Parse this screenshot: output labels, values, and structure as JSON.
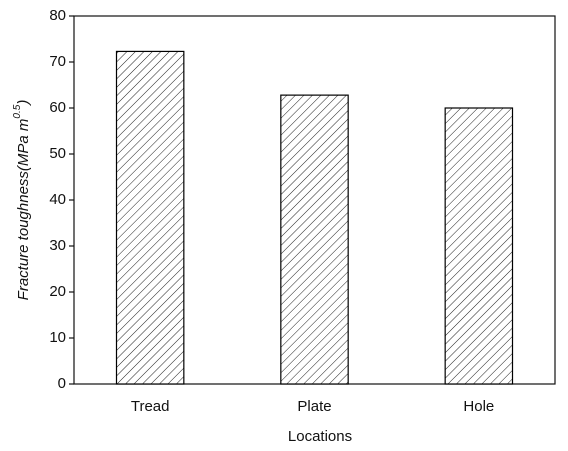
{
  "chart_data": {
    "type": "bar",
    "x_label": "Locations",
    "y_label": {
      "text": "Fracture toughness(MPa m",
      "superscript": "0.5",
      "close": ")"
    },
    "categories": [
      "Tread",
      "Plate",
      "Hole"
    ],
    "values": [
      72.3,
      62.8,
      60.0
    ],
    "color": "#000000",
    "ylim": [
      0,
      80
    ],
    "yticks": [
      0,
      10,
      20,
      30,
      40,
      50,
      60,
      70,
      80
    ],
    "grid": false
  }
}
